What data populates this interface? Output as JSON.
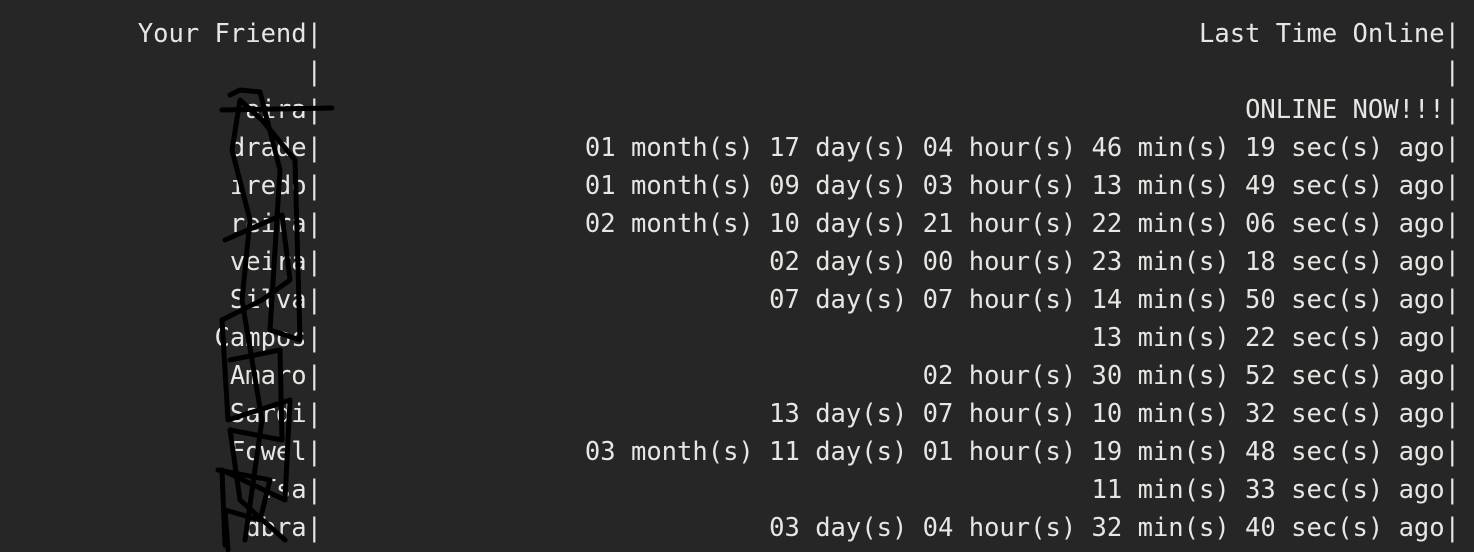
{
  "header": {
    "friend": "Your Friend|",
    "last_online": "Last Time Online|"
  },
  "separator": {
    "friend": "|",
    "last_online": "|"
  },
  "rows": [
    {
      "name": "aira|",
      "last_online": "ONLINE NOW!!!|"
    },
    {
      "name": "drade|",
      "last_online": "01 month(s) 17 day(s) 04 hour(s) 46 min(s) 19 sec(s) ago|"
    },
    {
      "name": "iredo|",
      "last_online": "01 month(s) 09 day(s) 03 hour(s) 13 min(s) 49 sec(s) ago|"
    },
    {
      "name": "reira|",
      "last_online": "02 month(s) 10 day(s) 21 hour(s) 22 min(s) 06 sec(s) ago|"
    },
    {
      "name": "veira|",
      "last_online": "02 day(s) 00 hour(s) 23 min(s) 18 sec(s) ago|"
    },
    {
      "name": "Silva|",
      "last_online": "07 day(s) 07 hour(s) 14 min(s) 50 sec(s) ago|"
    },
    {
      "name": "Campos|",
      "last_online": "13 min(s) 22 sec(s) ago|"
    },
    {
      "name": "Amaro|",
      "last_online": "02 hour(s) 30 min(s) 52 sec(s) ago|"
    },
    {
      "name": "Sardi|",
      "last_online": "13 day(s) 07 hour(s) 10 min(s) 32 sec(s) ago|"
    },
    {
      "name": "Fowel|",
      "last_online": "03 month(s) 11 day(s) 01 hour(s) 19 min(s) 48 sec(s) ago|"
    },
    {
      "name": "Tsa|",
      "last_online": "11 min(s) 33 sec(s) ago|"
    },
    {
      "name": "dbra|",
      "last_online": "03 day(s) 04 hour(s) 32 min(s) 40 sec(s) ago|"
    }
  ]
}
